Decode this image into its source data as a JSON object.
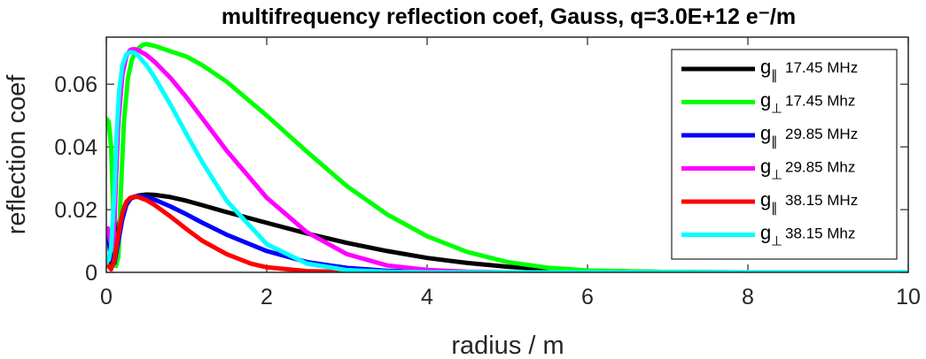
{
  "chart_data": {
    "type": "line",
    "title": "multifrequency reflection coef, Gauss, q=3.0E+12 e⁻/m",
    "xlabel": "radius / m",
    "ylabel": "reflection coef",
    "xlim": [
      0,
      10
    ],
    "ylim": [
      0,
      0.075
    ],
    "xticks": [
      "0",
      "2",
      "4",
      "6",
      "8",
      "10"
    ],
    "yticks": [
      "0",
      "0.02",
      "0.04",
      "0.06"
    ],
    "grid": false,
    "legend_position": "top-right",
    "series": [
      {
        "name": "g∥ 17.45 MHz",
        "legend_symbol": "g",
        "legend_subscript": "∥",
        "legend_text": "17.45 MHz",
        "color": "#000000",
        "x": [
          0.05,
          0.1,
          0.15,
          0.2,
          0.3,
          0.4,
          0.5,
          0.6,
          0.8,
          1.0,
          1.2,
          1.5,
          2.0,
          2.5,
          3.0,
          3.5,
          4.0,
          4.5,
          5.0,
          5.5,
          6.0,
          7.0,
          8.0,
          10.0
        ],
        "y": [
          0.002,
          0.008,
          0.015,
          0.02,
          0.0235,
          0.0245,
          0.0248,
          0.0247,
          0.024,
          0.0228,
          0.0214,
          0.0192,
          0.0158,
          0.0124,
          0.0094,
          0.0068,
          0.0046,
          0.003,
          0.0018,
          0.001,
          0.0005,
          0.0001,
          0.0,
          0.0
        ]
      },
      {
        "name": "g⊥ 17.45 Mhz",
        "legend_symbol": "g",
        "legend_subscript": "⊥",
        "legend_text": "17.45 Mhz",
        "color": "#00ff00",
        "x": [
          0.0,
          0.03,
          0.06,
          0.08,
          0.1,
          0.12,
          0.15,
          0.18,
          0.22,
          0.27,
          0.32,
          0.38,
          0.45,
          0.5,
          0.6,
          0.8,
          1.0,
          1.2,
          1.5,
          2.0,
          2.5,
          3.0,
          3.5,
          4.0,
          4.5,
          5.0,
          5.5,
          6.0,
          7.0,
          8.0,
          10.0
        ],
        "y": [
          0.049,
          0.048,
          0.04,
          0.025,
          0.01,
          0.002,
          0.005,
          0.025,
          0.048,
          0.062,
          0.068,
          0.071,
          0.0725,
          0.0728,
          0.0722,
          0.0705,
          0.0688,
          0.066,
          0.0608,
          0.05,
          0.0385,
          0.0275,
          0.0185,
          0.0115,
          0.0065,
          0.0033,
          0.0015,
          0.0006,
          0.0001,
          0.0,
          0.0
        ]
      },
      {
        "name": "g∥ 29.85 MHz",
        "legend_symbol": "g",
        "legend_subscript": "∥",
        "legend_text": "29.85 MHz",
        "color": "#0000ff",
        "x": [
          0.02,
          0.05,
          0.1,
          0.15,
          0.2,
          0.25,
          0.3,
          0.35,
          0.4,
          0.5,
          0.6,
          0.8,
          1.0,
          1.2,
          1.5,
          2.0,
          2.5,
          3.0,
          3.5,
          4.0,
          5.0,
          6.0,
          10.0
        ],
        "y": [
          0.012,
          0.006,
          0.003,
          0.01,
          0.017,
          0.0215,
          0.0235,
          0.0242,
          0.0243,
          0.024,
          0.0232,
          0.021,
          0.0185,
          0.0158,
          0.012,
          0.0068,
          0.0033,
          0.0014,
          0.0005,
          0.0002,
          0.0,
          0.0,
          0.0
        ]
      },
      {
        "name": "g⊥ 29.85 Mhz",
        "legend_symbol": "g",
        "legend_subscript": "⊥",
        "legend_text": "29.85 Mhz",
        "color": "#ff00ff",
        "x": [
          0.02,
          0.05,
          0.08,
          0.1,
          0.12,
          0.15,
          0.2,
          0.25,
          0.3,
          0.35,
          0.4,
          0.5,
          0.6,
          0.8,
          1.0,
          1.2,
          1.5,
          2.0,
          2.5,
          3.0,
          3.5,
          4.0,
          4.5,
          5.0,
          6.0,
          10.0
        ],
        "y": [
          0.014,
          0.01,
          0.008,
          0.015,
          0.03,
          0.048,
          0.063,
          0.069,
          0.071,
          0.0712,
          0.0708,
          0.0693,
          0.0672,
          0.062,
          0.0558,
          0.049,
          0.0388,
          0.0238,
          0.0128,
          0.0058,
          0.0022,
          0.0008,
          0.0002,
          0.0,
          0.0,
          0.0
        ]
      },
      {
        "name": "g∥ 38.15 MHz",
        "legend_symbol": "g",
        "legend_subscript": "∥",
        "legend_text": "38.15 MHz",
        "color": "#ff0000",
        "x": [
          0.0,
          0.03,
          0.06,
          0.1,
          0.15,
          0.2,
          0.25,
          0.3,
          0.35,
          0.4,
          0.5,
          0.6,
          0.8,
          1.0,
          1.2,
          1.5,
          1.8,
          2.0,
          2.5,
          3.0,
          3.5,
          4.0,
          10.0
        ],
        "y": [
          0.003,
          0.002,
          0.001,
          0.004,
          0.012,
          0.019,
          0.0225,
          0.0238,
          0.0241,
          0.024,
          0.023,
          0.0215,
          0.0178,
          0.0138,
          0.01,
          0.0058,
          0.0028,
          0.0016,
          0.0004,
          0.0001,
          0.0,
          0.0,
          0.0
        ]
      },
      {
        "name": "g⊥ 38.15 Mhz",
        "legend_symbol": "g",
        "legend_subscript": "⊥",
        "legend_text": "38.15 Mhz",
        "color": "#00ffff",
        "x": [
          0.0,
          0.03,
          0.06,
          0.1,
          0.13,
          0.16,
          0.2,
          0.25,
          0.3,
          0.35,
          0.4,
          0.5,
          0.6,
          0.8,
          1.0,
          1.2,
          1.5,
          2.0,
          2.5,
          3.0,
          3.5,
          4.0,
          5.0,
          10.0
        ],
        "y": [
          0.003,
          0.004,
          0.008,
          0.025,
          0.045,
          0.058,
          0.066,
          0.0695,
          0.0702,
          0.07,
          0.069,
          0.066,
          0.0622,
          0.0535,
          0.044,
          0.035,
          0.0228,
          0.009,
          0.0028,
          0.0007,
          0.0002,
          0.0,
          0.0,
          0.0
        ]
      }
    ]
  }
}
